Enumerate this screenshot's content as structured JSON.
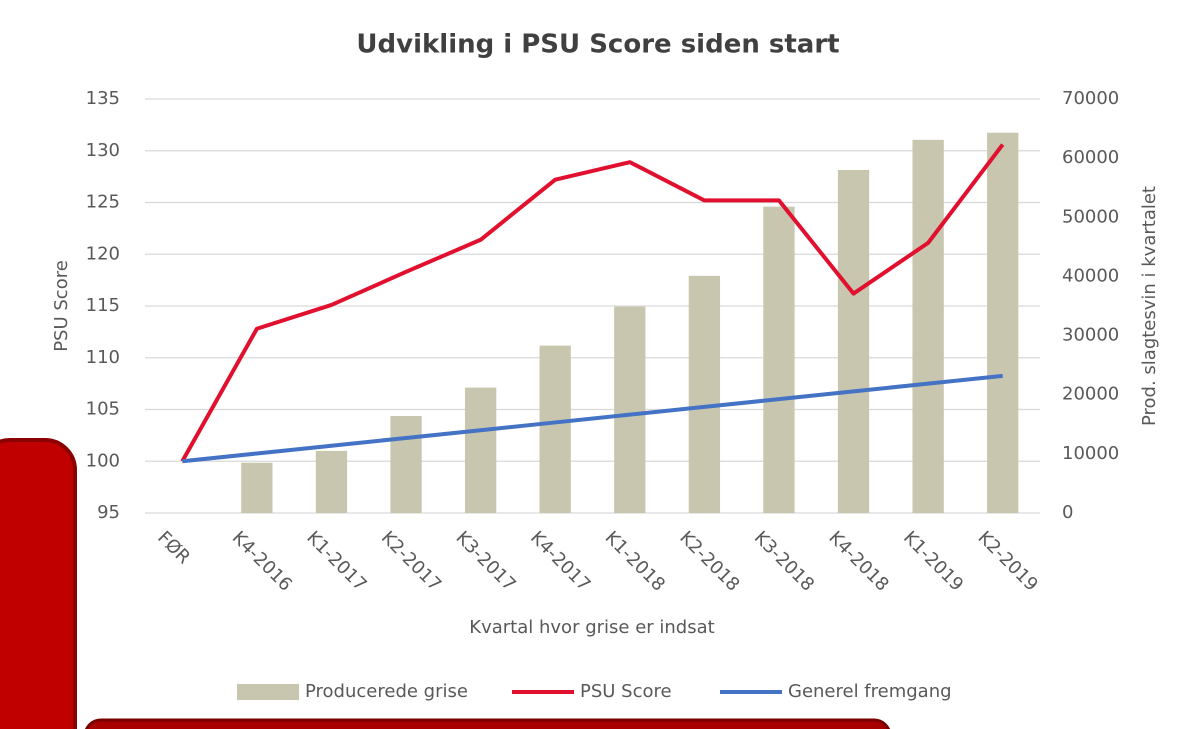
{
  "chart_data": {
    "type": "combo",
    "title": "Udvikling i PSU Score siden start",
    "x_label": "Kvartal hvor grise er indsat",
    "y_label": "PSU Score",
    "y2_label": "Prod. slagtesvin i kvartalet",
    "categories": [
      "FØR",
      "K4-2016",
      "K1-2017",
      "K2-2017",
      "K3-2017",
      "K4-2017",
      "K1-2018",
      "K2-2018",
      "K3-2018",
      "K4-2018",
      "K1-2019",
      "K2-2019"
    ],
    "series": [
      {
        "name": "Producerede grise",
        "type": "bar",
        "axis": "y2",
        "color": "#c9c6b0",
        "values": [
          null,
          8500,
          10500,
          16400,
          21200,
          28300,
          34900,
          40100,
          51800,
          58000,
          63100,
          64300
        ]
      },
      {
        "name": "PSU Score",
        "type": "line",
        "color": "#e0102e",
        "values": [
          100,
          112.8,
          115.1,
          118.3,
          121.4,
          127.2,
          128.9,
          125.2,
          125.2,
          116.2,
          121.1,
          130.6
        ]
      },
      {
        "name": "Generel fremgang",
        "type": "line",
        "color": "#4472c4",
        "values": [
          100,
          100.75,
          101.5,
          102.25,
          103,
          103.75,
          104.5,
          105.25,
          106,
          106.75,
          107.5,
          108.25
        ]
      }
    ],
    "ylim": [
      95,
      135
    ],
    "yticks": [
      95,
      100,
      105,
      110,
      115,
      120,
      125,
      130,
      135
    ],
    "y2lim": [
      0,
      70000
    ],
    "y2ticks": [
      0,
      10000,
      20000,
      30000,
      40000,
      50000,
      60000,
      70000
    ],
    "grid": true,
    "legend": "bottom"
  }
}
